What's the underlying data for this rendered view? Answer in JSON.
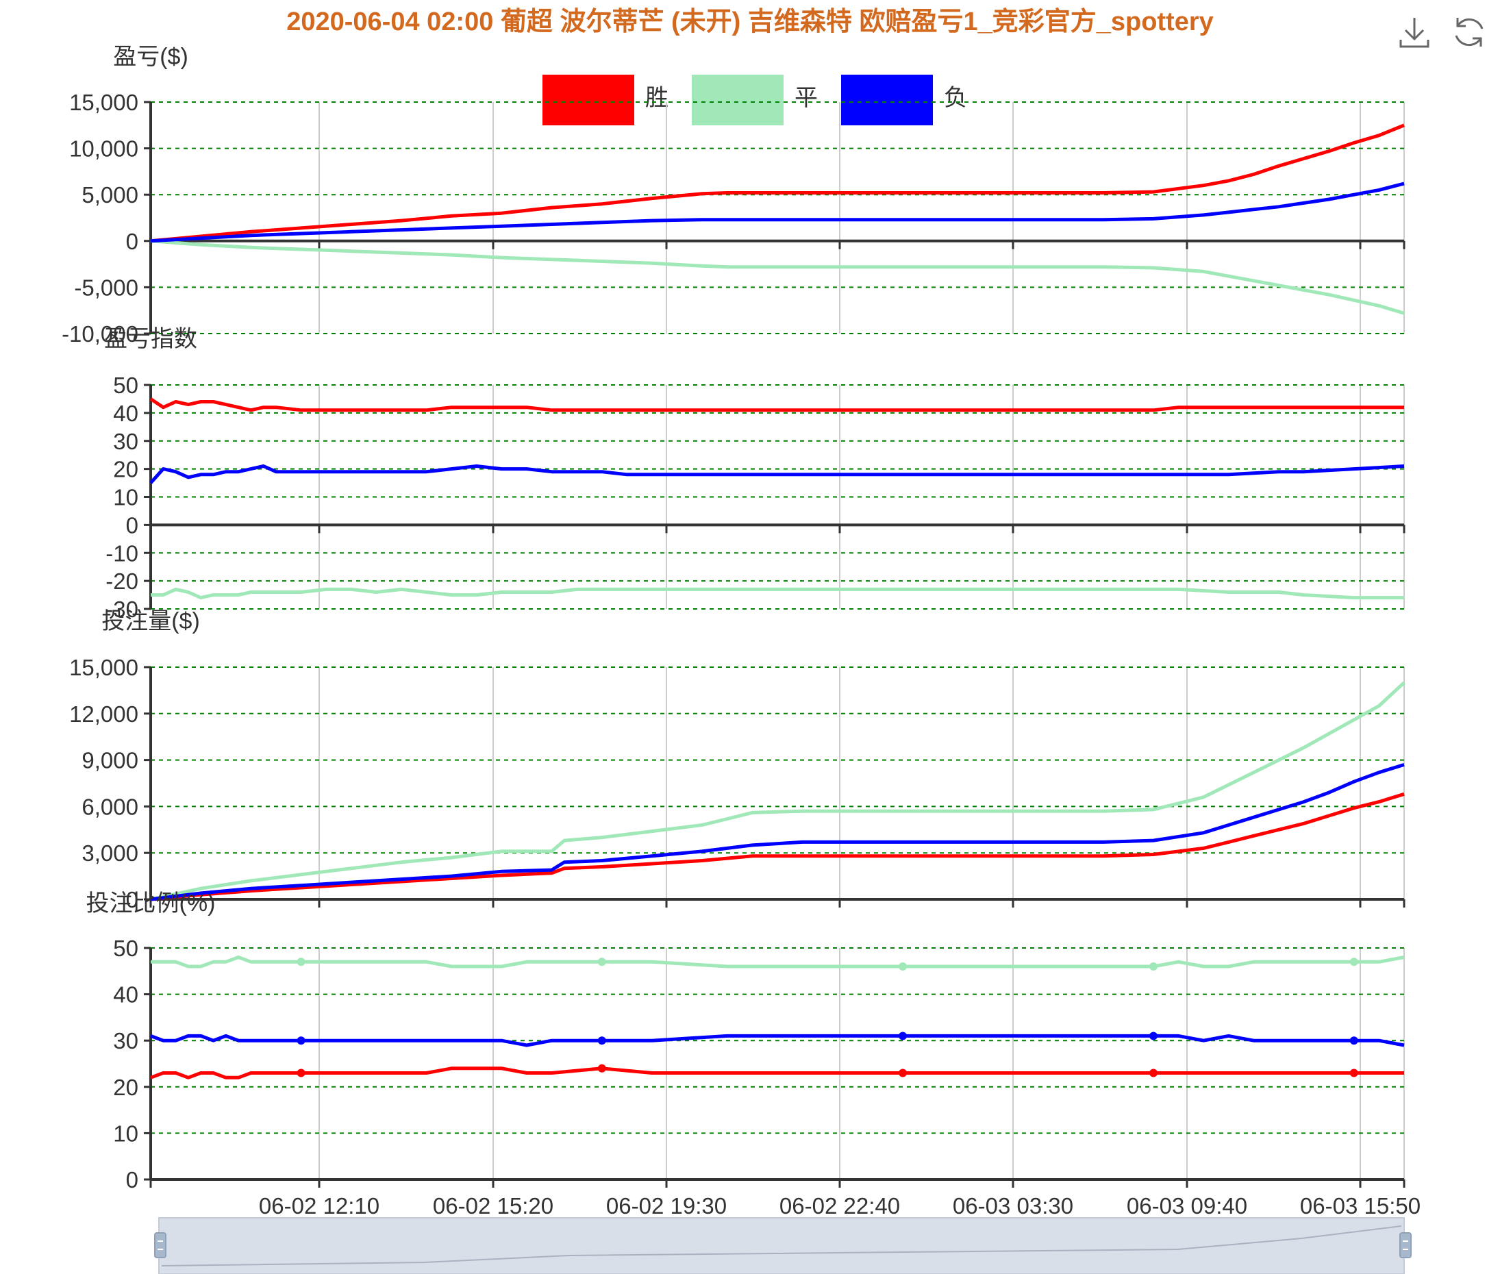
{
  "title": "2020-06-04 02:00 葡超 波尔蒂芒 (未开) 吉维森特 欧赔盈亏1_竞彩官方_spottery",
  "toolbox": {
    "download_icon": "download-icon",
    "refresh_icon": "refresh-icon"
  },
  "colors": {
    "title": "#d2691e",
    "win": "#ff0000",
    "draw": "#a0e8b8",
    "lose": "#0000ff",
    "grid": "#008000",
    "axis": "#333333"
  },
  "legend": [
    {
      "name": "胜",
      "color": "#ff0000"
    },
    {
      "name": "平",
      "color": "#a0e8b8"
    },
    {
      "name": "负",
      "color": "#0000ff"
    }
  ],
  "x_axis": {
    "tick_labels": [
      "06-02 12:10",
      "06-02 15:20",
      "06-02 19:30",
      "06-02 22:40",
      "06-03 03:30",
      "06-03 09:40",
      "06-03 15:50"
    ]
  },
  "chart_data": [
    {
      "type": "line",
      "ylabel": "盈亏($)",
      "ylim": [
        -10000,
        15000
      ],
      "yticks": [
        15000,
        10000,
        5000,
        0,
        -5000,
        -10000
      ],
      "ytick_labels": [
        "15,000",
        "10,000",
        "5,000",
        "0",
        "-5,000",
        "-10,000"
      ],
      "x": [
        0,
        4,
        8,
        12,
        16,
        20,
        24,
        28,
        32,
        36,
        40,
        44,
        46,
        48,
        52,
        56,
        60,
        64,
        68,
        72,
        76,
        80,
        84,
        86,
        88,
        90,
        92,
        94,
        96,
        98,
        100
      ],
      "series": [
        {
          "name": "胜",
          "values": [
            0,
            500,
            1000,
            1400,
            1800,
            2200,
            2700,
            3000,
            3600,
            4000,
            4600,
            5100,
            5200,
            5200,
            5200,
            5200,
            5200,
            5200,
            5200,
            5200,
            5200,
            5300,
            6000,
            6500,
            7200,
            8100,
            8900,
            9700,
            10600,
            11400,
            12500
          ]
        },
        {
          "name": "平",
          "values": [
            0,
            -400,
            -700,
            -900,
            -1100,
            -1300,
            -1500,
            -1800,
            -2000,
            -2200,
            -2400,
            -2700,
            -2800,
            -2800,
            -2800,
            -2800,
            -2800,
            -2800,
            -2800,
            -2800,
            -2800,
            -2900,
            -3300,
            -3800,
            -4300,
            -4800,
            -5300,
            -5800,
            -6400,
            -7000,
            -7800
          ]
        },
        {
          "name": "负",
          "values": [
            0,
            300,
            600,
            800,
            1000,
            1200,
            1400,
            1600,
            1800,
            2000,
            2200,
            2300,
            2300,
            2300,
            2300,
            2300,
            2300,
            2300,
            2300,
            2300,
            2300,
            2400,
            2800,
            3100,
            3400,
            3700,
            4100,
            4500,
            5000,
            5500,
            6200
          ]
        }
      ]
    },
    {
      "type": "line",
      "ylabel": "盈亏指数",
      "ylim": [
        -30,
        50
      ],
      "yticks": [
        50,
        40,
        30,
        20,
        10,
        0,
        -10,
        -20,
        -30
      ],
      "ytick_labels": [
        "50",
        "40",
        "30",
        "20",
        "10",
        "0",
        "-10",
        "-20",
        "-30"
      ],
      "x": [
        0,
        1,
        2,
        3,
        4,
        5,
        6,
        7,
        8,
        9,
        10,
        12,
        14,
        16,
        18,
        20,
        22,
        24,
        26,
        28,
        30,
        32,
        34,
        36,
        38,
        40,
        46,
        60,
        80,
        82,
        86,
        90,
        92,
        96,
        100
      ],
      "series": [
        {
          "name": "胜",
          "values": [
            45,
            42,
            44,
            43,
            44,
            44,
            43,
            42,
            41,
            42,
            42,
            41,
            41,
            41,
            41,
            41,
            41,
            42,
            42,
            42,
            42,
            41,
            41,
            41,
            41,
            41,
            41,
            41,
            41,
            42,
            42,
            42,
            42,
            42,
            42
          ]
        },
        {
          "name": "平",
          "values": [
            -25,
            -25,
            -23,
            -24,
            -26,
            -25,
            -25,
            -25,
            -24,
            -24,
            -24,
            -24,
            -23,
            -23,
            -24,
            -23,
            -24,
            -25,
            -25,
            -24,
            -24,
            -24,
            -23,
            -23,
            -23,
            -23,
            -23,
            -23,
            -23,
            -23,
            -24,
            -24,
            -25,
            -26,
            -26
          ]
        },
        {
          "name": "负",
          "values": [
            15,
            20,
            19,
            17,
            18,
            18,
            19,
            19,
            20,
            21,
            19,
            19,
            19,
            19,
            19,
            19,
            19,
            20,
            21,
            20,
            20,
            19,
            19,
            19,
            18,
            18,
            18,
            18,
            18,
            18,
            18,
            19,
            19,
            20,
            21
          ]
        }
      ]
    },
    {
      "type": "line",
      "ylabel": "投注量($)",
      "ylim": [
        0,
        15000
      ],
      "yticks": [
        15000,
        12000,
        9000,
        6000,
        3000,
        0
      ],
      "ytick_labels": [
        "15,000",
        "12,000",
        "9,000",
        "6,000",
        "3,000",
        "0"
      ],
      "x": [
        0,
        4,
        8,
        12,
        16,
        20,
        24,
        28,
        32,
        33,
        36,
        40,
        44,
        46,
        48,
        52,
        56,
        60,
        64,
        68,
        72,
        76,
        80,
        84,
        86,
        88,
        90,
        92,
        94,
        96,
        98,
        100
      ],
      "series": [
        {
          "name": "胜",
          "values": [
            0,
            300,
            550,
            750,
            950,
            1150,
            1350,
            1550,
            1700,
            2000,
            2100,
            2300,
            2500,
            2650,
            2800,
            2800,
            2800,
            2800,
            2800,
            2800,
            2800,
            2800,
            2900,
            3300,
            3700,
            4100,
            4500,
            4900,
            5400,
            5900,
            6300,
            6800
          ]
        },
        {
          "name": "平",
          "values": [
            0,
            700,
            1200,
            1600,
            2000,
            2400,
            2700,
            3100,
            3100,
            3800,
            4000,
            4400,
            4800,
            5200,
            5600,
            5700,
            5700,
            5700,
            5700,
            5700,
            5700,
            5700,
            5800,
            6600,
            7400,
            8200,
            9000,
            9800,
            10700,
            11600,
            12500,
            14000
          ]
        },
        {
          "name": "负",
          "values": [
            0,
            400,
            700,
            900,
            1100,
            1300,
            1500,
            1800,
            1900,
            2400,
            2500,
            2800,
            3100,
            3300,
            3500,
            3700,
            3700,
            3700,
            3700,
            3700,
            3700,
            3700,
            3800,
            4300,
            4800,
            5300,
            5800,
            6300,
            6900,
            7600,
            8200,
            8700
          ]
        }
      ]
    },
    {
      "type": "line",
      "ylabel": "投注比例(%)",
      "ylim": [
        0,
        50
      ],
      "yticks": [
        50,
        40,
        30,
        20,
        10,
        0
      ],
      "ytick_labels": [
        "50",
        "40",
        "30",
        "20",
        "10",
        "0"
      ],
      "x": [
        0,
        1,
        2,
        3,
        4,
        5,
        6,
        7,
        8,
        9,
        10,
        12,
        14,
        16,
        18,
        20,
        22,
        24,
        26,
        28,
        30,
        32,
        36,
        40,
        46,
        60,
        80,
        82,
        84,
        86,
        88,
        90,
        92,
        94,
        96,
        98,
        100
      ],
      "series": [
        {
          "name": "胜",
          "values": [
            22,
            23,
            23,
            22,
            23,
            23,
            22,
            22,
            23,
            23,
            23,
            23,
            23,
            23,
            23,
            23,
            23,
            24,
            24,
            24,
            23,
            23,
            24,
            23,
            23,
            23,
            23,
            23,
            23,
            23,
            23,
            23,
            23,
            23,
            23,
            23,
            23
          ]
        },
        {
          "name": "平",
          "values": [
            47,
            47,
            47,
            46,
            46,
            47,
            47,
            48,
            47,
            47,
            47,
            47,
            47,
            47,
            47,
            47,
            47,
            46,
            46,
            46,
            47,
            47,
            47,
            47,
            46,
            46,
            46,
            47,
            46,
            46,
            47,
            47,
            47,
            47,
            47,
            47,
            48
          ]
        },
        {
          "name": "负",
          "values": [
            31,
            30,
            30,
            31,
            31,
            30,
            31,
            30,
            30,
            30,
            30,
            30,
            30,
            30,
            30,
            30,
            30,
            30,
            30,
            30,
            29,
            30,
            30,
            30,
            31,
            31,
            31,
            31,
            30,
            31,
            30,
            30,
            30,
            30,
            30,
            30,
            29
          ]
        }
      ]
    }
  ]
}
